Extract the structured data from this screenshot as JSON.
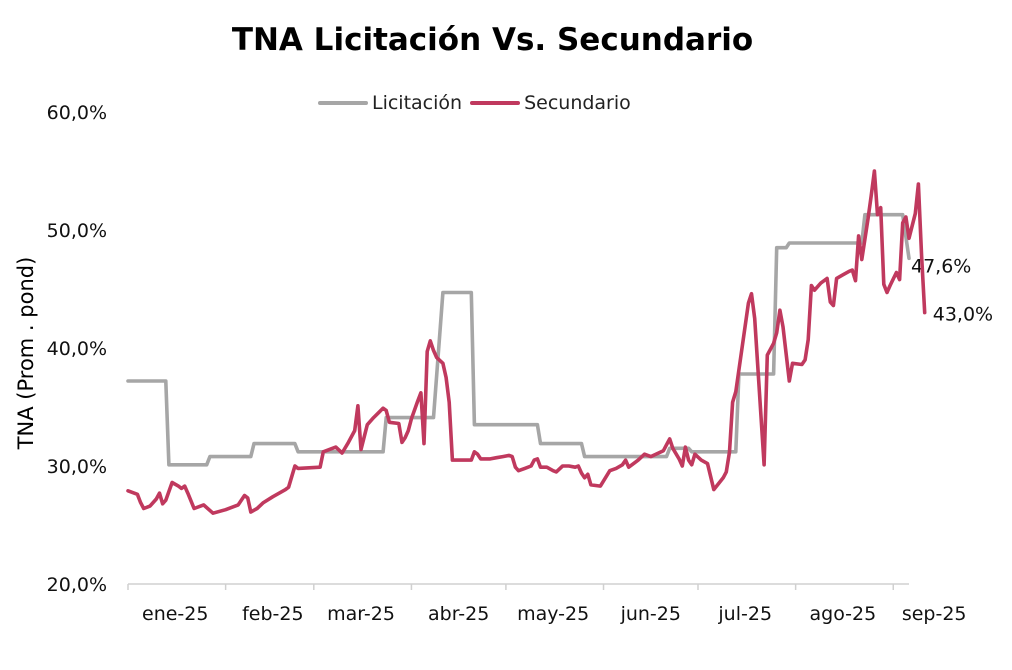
{
  "chart_data": {
    "type": "line",
    "title": "TNA Licitación Vs. Secundario",
    "xlabel": "",
    "ylabel": "TNA (Prom . pond)",
    "ylim": [
      20,
      60
    ],
    "yticks": [
      "20,0%",
      "30,0%",
      "40,0%",
      "50,0%",
      "60,0%"
    ],
    "ytick_values": [
      20,
      30,
      40,
      50,
      60
    ],
    "xlim": [
      0,
      248
    ],
    "xticks": [
      "ene-25",
      "feb-25",
      "mar-25",
      "abr-25",
      "may-25",
      "jun-25",
      "jul-25",
      "ago-25",
      "sep-25"
    ],
    "xtick_values": [
      0,
      31,
      59,
      90,
      120,
      151,
      181,
      212,
      243
    ],
    "legend_position": "top",
    "grid": false,
    "series": [
      {
        "name": "Licitación",
        "color": "#a6a6a6",
        "end_label": "47,6%",
        "points": [
          [
            0,
            37.2
          ],
          [
            12,
            37.2
          ],
          [
            13,
            30.1
          ],
          [
            25,
            30.1
          ],
          [
            26,
            30.8
          ],
          [
            39,
            30.8
          ],
          [
            40,
            31.9
          ],
          [
            53,
            31.9
          ],
          [
            54,
            31.2
          ],
          [
            81,
            31.2
          ],
          [
            82,
            34.1
          ],
          [
            97,
            34.1
          ],
          [
            100,
            44.7
          ],
          [
            109,
            44.7
          ],
          [
            110,
            33.5
          ],
          [
            130,
            33.5
          ],
          [
            131,
            31.9
          ],
          [
            144,
            31.9
          ],
          [
            145,
            30.8
          ],
          [
            171,
            30.8
          ],
          [
            172,
            31.5
          ],
          [
            178,
            31.5
          ],
          [
            179,
            31.2
          ],
          [
            193,
            31.2
          ],
          [
            194,
            37.8
          ],
          [
            205,
            37.8
          ],
          [
            206,
            48.5
          ],
          [
            209,
            48.5
          ],
          [
            210,
            48.9
          ],
          [
            233,
            48.9
          ],
          [
            234,
            51.3
          ],
          [
            246,
            51.3
          ],
          [
            248,
            47.6
          ]
        ]
      },
      {
        "name": "Secundario",
        "color": "#c0395e",
        "end_label": "43,0%",
        "points": [
          [
            0,
            27.9
          ],
          [
            3,
            27.6
          ],
          [
            4,
            26.9
          ],
          [
            5,
            26.4
          ],
          [
            7,
            26.6
          ],
          [
            9,
            27.2
          ],
          [
            10,
            27.7
          ],
          [
            11,
            26.8
          ],
          [
            12,
            27.1
          ],
          [
            14,
            28.6
          ],
          [
            16,
            28.3
          ],
          [
            17,
            28.1
          ],
          [
            18,
            28.3
          ],
          [
            19,
            27.7
          ],
          [
            21,
            26.4
          ],
          [
            24,
            26.7
          ],
          [
            27,
            26.0
          ],
          [
            31,
            26.3
          ],
          [
            35,
            26.7
          ],
          [
            37,
            27.5
          ],
          [
            38,
            27.3
          ],
          [
            39,
            26.1
          ],
          [
            41,
            26.4
          ],
          [
            43,
            26.9
          ],
          [
            46,
            27.4
          ],
          [
            50,
            28.0
          ],
          [
            51,
            28.2
          ],
          [
            53,
            30.0
          ],
          [
            54,
            29.8
          ],
          [
            61,
            29.9
          ],
          [
            62,
            31.2
          ],
          [
            66,
            31.6
          ],
          [
            68,
            31.1
          ],
          [
            70,
            32.0
          ],
          [
            72,
            33.0
          ],
          [
            73,
            35.1
          ],
          [
            74,
            31.4
          ],
          [
            76,
            33.5
          ],
          [
            78,
            34.1
          ],
          [
            81,
            34.9
          ],
          [
            82,
            34.7
          ],
          [
            83,
            33.7
          ],
          [
            86,
            33.6
          ],
          [
            87,
            32.0
          ],
          [
            88,
            32.4
          ],
          [
            89,
            33.0
          ],
          [
            90,
            34.0
          ],
          [
            92,
            35.5
          ],
          [
            93,
            36.2
          ],
          [
            94,
            31.9
          ],
          [
            95,
            39.7
          ],
          [
            96,
            40.6
          ],
          [
            97,
            39.8
          ],
          [
            98,
            39.2
          ],
          [
            100,
            38.7
          ],
          [
            101,
            37.5
          ],
          [
            102,
            35.4
          ],
          [
            103,
            30.5
          ],
          [
            109,
            30.5
          ],
          [
            110,
            31.2
          ],
          [
            111,
            31.0
          ],
          [
            112,
            30.6
          ],
          [
            115,
            30.6
          ],
          [
            117,
            30.7
          ],
          [
            119,
            30.8
          ],
          [
            121,
            30.9
          ],
          [
            122,
            30.8
          ],
          [
            123,
            29.9
          ],
          [
            124,
            29.6
          ],
          [
            126,
            29.8
          ],
          [
            128,
            30.0
          ],
          [
            129,
            30.5
          ],
          [
            130,
            30.6
          ],
          [
            131,
            29.9
          ],
          [
            133,
            29.9
          ],
          [
            135,
            29.6
          ],
          [
            136,
            29.5
          ],
          [
            138,
            30.0
          ],
          [
            140,
            30.0
          ],
          [
            142,
            29.9
          ],
          [
            143,
            30.0
          ],
          [
            144,
            29.4
          ],
          [
            145,
            29.0
          ],
          [
            146,
            29.3
          ],
          [
            147,
            28.4
          ],
          [
            150,
            28.3
          ],
          [
            153,
            29.6
          ],
          [
            155,
            29.8
          ],
          [
            157,
            30.1
          ],
          [
            158,
            30.5
          ],
          [
            159,
            29.9
          ],
          [
            162,
            30.5
          ],
          [
            164,
            31.0
          ],
          [
            166,
            30.8
          ],
          [
            170,
            31.3
          ],
          [
            171,
            31.8
          ],
          [
            172,
            32.3
          ],
          [
            173,
            31.5
          ],
          [
            175,
            30.6
          ],
          [
            176,
            30.0
          ],
          [
            177,
            31.6
          ],
          [
            178,
            30.5
          ],
          [
            179,
            30.1
          ],
          [
            180,
            31.0
          ],
          [
            182,
            30.5
          ],
          [
            184,
            30.2
          ],
          [
            186,
            28.0
          ],
          [
            189,
            29.0
          ],
          [
            190,
            29.5
          ],
          [
            191,
            31.2
          ],
          [
            192,
            35.4
          ],
          [
            193,
            36.3
          ],
          [
            197,
            43.8
          ],
          [
            198,
            44.6
          ],
          [
            199,
            42.5
          ],
          [
            202,
            30.1
          ],
          [
            203,
            39.4
          ],
          [
            205,
            40.4
          ],
          [
            206,
            41.3
          ],
          [
            207,
            43.2
          ],
          [
            208,
            41.8
          ],
          [
            210,
            37.2
          ],
          [
            211,
            38.7
          ],
          [
            214,
            38.6
          ],
          [
            215,
            39.0
          ],
          [
            216,
            40.7
          ],
          [
            217,
            45.3
          ],
          [
            218,
            44.9
          ],
          [
            220,
            45.5
          ],
          [
            222,
            45.9
          ],
          [
            223,
            43.9
          ],
          [
            224,
            43.6
          ],
          [
            225,
            45.9
          ],
          [
            227,
            46.2
          ],
          [
            229,
            46.5
          ],
          [
            230,
            46.6
          ],
          [
            231,
            45.7
          ],
          [
            232,
            49.5
          ],
          [
            233,
            47.5
          ],
          [
            235,
            51.0
          ],
          [
            236,
            52.9
          ],
          [
            237,
            55.0
          ],
          [
            238,
            51.3
          ],
          [
            239,
            51.9
          ],
          [
            240,
            45.4
          ],
          [
            241,
            44.7
          ],
          [
            242,
            45.3
          ],
          [
            244,
            46.4
          ],
          [
            245,
            45.8
          ],
          [
            246,
            50.6
          ],
          [
            247,
            51.1
          ],
          [
            248,
            49.3
          ],
          [
            250,
            51.4
          ],
          [
            251,
            53.9
          ],
          [
            252,
            47.8
          ],
          [
            253,
            43.0
          ]
        ]
      }
    ]
  }
}
